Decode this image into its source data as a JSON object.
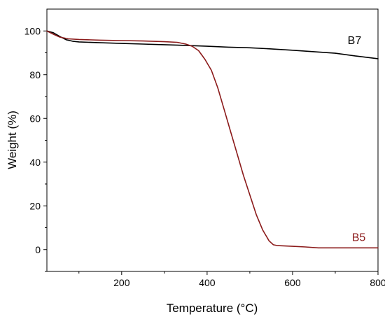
{
  "chart_data": {
    "type": "line",
    "title": "",
    "xlabel": "Temperature (°C)",
    "ylabel": "Weight (%)",
    "xlim": [
      25,
      800
    ],
    "ylim": [
      -10,
      110
    ],
    "x_ticks": [
      200,
      400,
      600,
      800
    ],
    "y_ticks": [
      0,
      20,
      40,
      60,
      80,
      100
    ],
    "x_minor_ticks": [
      100,
      300,
      500,
      700
    ],
    "y_minor_ticks": [
      -10,
      10,
      30,
      50,
      70,
      90
    ],
    "grid": false,
    "legend": "none",
    "series": [
      {
        "name": "B7",
        "color": "#000000",
        "label_at": [
          745,
          94
        ],
        "points": [
          [
            25,
            100
          ],
          [
            40,
            99.2
          ],
          [
            55,
            97.5
          ],
          [
            70,
            96
          ],
          [
            85,
            95.3
          ],
          [
            100,
            95
          ],
          [
            150,
            94.6
          ],
          [
            200,
            94.3
          ],
          [
            250,
            94
          ],
          [
            300,
            93.7
          ],
          [
            350,
            93.4
          ],
          [
            400,
            93
          ],
          [
            450,
            92.6
          ],
          [
            500,
            92.3
          ],
          [
            550,
            91.8
          ],
          [
            600,
            91.2
          ],
          [
            650,
            90.5
          ],
          [
            700,
            89.8
          ],
          [
            750,
            88.5
          ],
          [
            800,
            87.3
          ]
        ]
      },
      {
        "name": "B5",
        "color": "#8b1a1a",
        "label_at": [
          755,
          4
        ],
        "points": [
          [
            25,
            100
          ],
          [
            40,
            98.5
          ],
          [
            55,
            97.2
          ],
          [
            75,
            96.4
          ],
          [
            100,
            96.1
          ],
          [
            150,
            95.8
          ],
          [
            200,
            95.6
          ],
          [
            250,
            95.4
          ],
          [
            300,
            95.1
          ],
          [
            330,
            94.8
          ],
          [
            350,
            94
          ],
          [
            365,
            93
          ],
          [
            380,
            91
          ],
          [
            395,
            87
          ],
          [
            410,
            82
          ],
          [
            425,
            74
          ],
          [
            440,
            64
          ],
          [
            455,
            54
          ],
          [
            470,
            44
          ],
          [
            485,
            34
          ],
          [
            500,
            25
          ],
          [
            515,
            16
          ],
          [
            530,
            9
          ],
          [
            545,
            4
          ],
          [
            555,
            2.2
          ],
          [
            565,
            1.8
          ],
          [
            600,
            1.5
          ],
          [
            630,
            1.2
          ],
          [
            660,
            0.8
          ],
          [
            700,
            0.8
          ],
          [
            800,
            0.8
          ]
        ]
      }
    ]
  }
}
